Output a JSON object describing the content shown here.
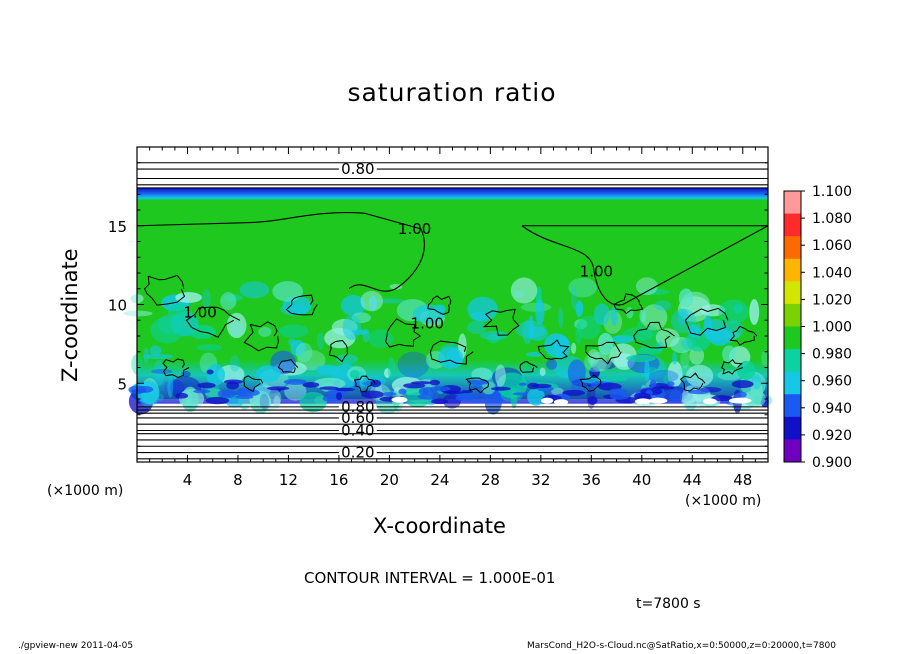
{
  "chart_data": {
    "type": "heatmap",
    "title": "saturation ratio",
    "xlabel": "X-coordinate",
    "ylabel": "Z-coordinate",
    "x_unit": "(×1000 m)",
    "x_unit_right": "(×1000 m)",
    "x_ticks": [
      4,
      8,
      12,
      16,
      20,
      24,
      28,
      32,
      36,
      40,
      44,
      48
    ],
    "y_ticks": [
      5,
      10,
      15
    ],
    "xlim": [
      0,
      50
    ],
    "ylim": [
      0,
      20
    ],
    "colorbar": {
      "levels": [
        "1.100",
        "1.080",
        "1.060",
        "1.040",
        "1.020",
        "1.000",
        "0.980",
        "0.960",
        "0.940",
        "0.920",
        "0.900"
      ],
      "colors": [
        "#ff9a9a",
        "#ff2a2a",
        "#ff6a00",
        "#ffb400",
        "#d2e600",
        "#7ad200",
        "#1ec81e",
        "#0ad2a0",
        "#14c8e6",
        "#1a5af0",
        "#1010c8",
        "#7000c0"
      ]
    },
    "contour_labels": [
      {
        "text": "0.80",
        "x": 17.5,
        "z": 18.6
      },
      {
        "text": "1.00",
        "x": 22.0,
        "z": 14.8
      },
      {
        "text": "1.00",
        "x": 36.4,
        "z": 12.1
      },
      {
        "text": "1.00",
        "x": 5.0,
        "z": 9.5
      },
      {
        "text": "1.00",
        "x": 23.0,
        "z": 8.8
      },
      {
        "text": "0.80",
        "x": 17.5,
        "z": 3.5
      },
      {
        "text": "0.60",
        "x": 17.5,
        "z": 2.8
      },
      {
        "text": "0.40",
        "x": 17.5,
        "z": 2.0
      },
      {
        "text": "0.20",
        "x": 17.5,
        "z": 0.6
      }
    ],
    "contour_interval": "CONTOUR INTERVAL = 1.000E-01",
    "time": "t=7800 s"
  },
  "footer": {
    "left": "./gpview-new   2011-04-05",
    "right": "MarsCond_H2O-s-Cloud.nc@SatRatio,x=0:50000,z=0:20000,t=7800"
  }
}
